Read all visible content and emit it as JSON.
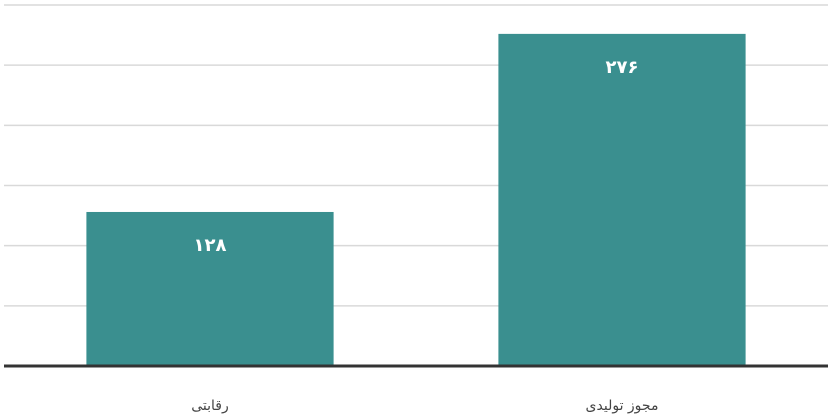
{
  "chart_data": {
    "type": "bar",
    "categories": [
      "رقابتی",
      "مجوز تولیدی"
    ],
    "values": [
      128,
      276
    ],
    "value_labels": [
      "۱۲۸",
      "۲۷۶"
    ],
    "color": "#3a8f8f",
    "ylim": [
      0,
      300
    ],
    "yticks": [
      0,
      50,
      100,
      150,
      200,
      250,
      300
    ],
    "grid": true
  }
}
